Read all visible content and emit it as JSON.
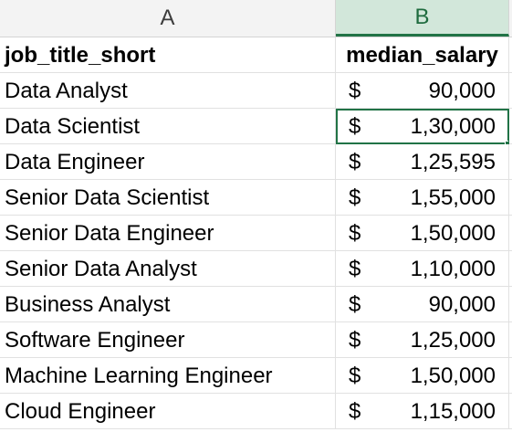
{
  "columns": {
    "a": "A",
    "b": "B"
  },
  "headers": {
    "a": "job_title_short",
    "b": "median_salary"
  },
  "currency_symbol": "$",
  "rows": [
    {
      "title": "Data Analyst",
      "salary": "90,000"
    },
    {
      "title": "Data Scientist",
      "salary": "1,30,000"
    },
    {
      "title": "Data Engineer",
      "salary": "1,25,595"
    },
    {
      "title": "Senior Data Scientist",
      "salary": "1,55,000"
    },
    {
      "title": "Senior Data Engineer",
      "salary": "1,50,000"
    },
    {
      "title": "Senior Data Analyst",
      "salary": "1,10,000"
    },
    {
      "title": "Business Analyst",
      "salary": "90,000"
    },
    {
      "title": "Software Engineer",
      "salary": "1,25,000"
    },
    {
      "title": "Machine Learning Engineer",
      "salary": "1,50,000"
    },
    {
      "title": "Cloud Engineer",
      "salary": "1,15,000"
    }
  ],
  "selected_row_index": 1,
  "colors": {
    "accent": "#217346",
    "header_bg": "#f3f3f3",
    "selected_header_bg": "#d2e7da"
  }
}
